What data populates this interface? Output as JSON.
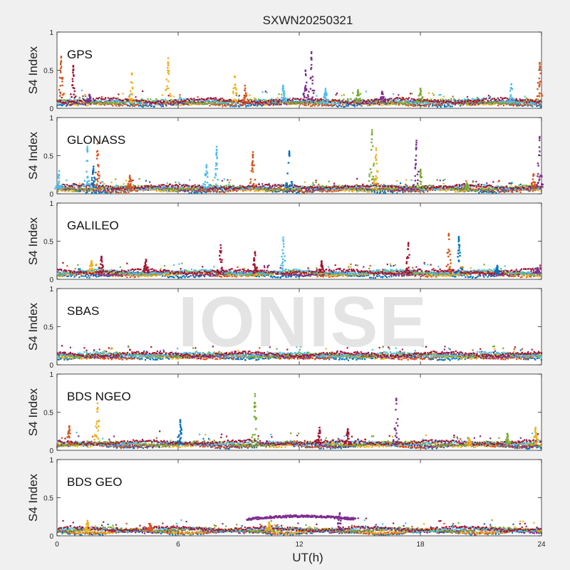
{
  "chart_data": {
    "type": "scatter",
    "title": "SXWN20250321",
    "xlabel": "UT(h)",
    "ylabel": "S4 Index",
    "xlim": [
      0,
      24
    ],
    "ylim": [
      0,
      1
    ],
    "x_ticks": [
      "0",
      "6",
      "12",
      "18",
      "24"
    ],
    "y_ticks": [
      "0",
      "0.5",
      "1"
    ],
    "watermark": "IONISE",
    "grid": false,
    "series_colors": [
      "#0072BD",
      "#D95319",
      "#EDB120",
      "#7E2F8E",
      "#77AC30",
      "#4DBEEE",
      "#A2142F"
    ],
    "panels": [
      {
        "label": "GPS",
        "baseline": 0.08,
        "spikes": [
          {
            "x": 0.2,
            "peak": 0.68,
            "color": "#D95319"
          },
          {
            "x": 0.8,
            "peak": 0.56,
            "color": "#A2142F"
          },
          {
            "x": 1.6,
            "peak": 0.18,
            "color": "#7E2F8E"
          },
          {
            "x": 3.7,
            "peak": 0.46,
            "color": "#EDB120"
          },
          {
            "x": 5.5,
            "peak": 0.66,
            "color": "#EDB120"
          },
          {
            "x": 8.8,
            "peak": 0.42,
            "color": "#EDB120"
          },
          {
            "x": 9.3,
            "peak": 0.3,
            "color": "#D95319"
          },
          {
            "x": 11.2,
            "peak": 0.3,
            "color": "#4DBEEE"
          },
          {
            "x": 12.3,
            "peak": 0.5,
            "color": "#7E2F8E"
          },
          {
            "x": 12.6,
            "peak": 0.74,
            "color": "#7E2F8E"
          },
          {
            "x": 13.3,
            "peak": 0.26,
            "color": "#4DBEEE"
          },
          {
            "x": 14.9,
            "peak": 0.24,
            "color": "#77AC30"
          },
          {
            "x": 16.1,
            "peak": 0.22,
            "color": "#7E2F8E"
          },
          {
            "x": 18.0,
            "peak": 0.26,
            "color": "#77AC30"
          },
          {
            "x": 22.5,
            "peak": 0.32,
            "color": "#4DBEEE"
          },
          {
            "x": 23.9,
            "peak": 0.6,
            "color": "#D95319"
          }
        ]
      },
      {
        "label": "GLONASS",
        "baseline": 0.07,
        "spikes": [
          {
            "x": 0.1,
            "peak": 0.3,
            "color": "#4DBEEE"
          },
          {
            "x": 1.5,
            "peak": 0.62,
            "color": "#4DBEEE"
          },
          {
            "x": 1.8,
            "peak": 0.36,
            "color": "#0072BD"
          },
          {
            "x": 2.0,
            "peak": 0.66,
            "color": "#D95319"
          },
          {
            "x": 3.6,
            "peak": 0.24,
            "color": "#D95319"
          },
          {
            "x": 7.4,
            "peak": 0.38,
            "color": "#4DBEEE"
          },
          {
            "x": 7.9,
            "peak": 0.62,
            "color": "#4DBEEE"
          },
          {
            "x": 9.7,
            "peak": 0.55,
            "color": "#D95319"
          },
          {
            "x": 11.5,
            "peak": 0.56,
            "color": "#0072BD"
          },
          {
            "x": 15.6,
            "peak": 0.84,
            "color": "#77AC30"
          },
          {
            "x": 15.8,
            "peak": 0.6,
            "color": "#EDB120"
          },
          {
            "x": 17.8,
            "peak": 0.7,
            "color": "#7E2F8E"
          },
          {
            "x": 18.0,
            "peak": 0.32,
            "color": "#77AC30"
          },
          {
            "x": 20.3,
            "peak": 0.14,
            "color": "#77AC30"
          },
          {
            "x": 23.6,
            "peak": 0.26,
            "color": "#D95319"
          },
          {
            "x": 23.9,
            "peak": 0.75,
            "color": "#7E2F8E"
          }
        ]
      },
      {
        "label": "GALILEO",
        "baseline": 0.08,
        "spikes": [
          {
            "x": 1.7,
            "peak": 0.24,
            "color": "#EDB120"
          },
          {
            "x": 2.2,
            "peak": 0.3,
            "color": "#A2142F"
          },
          {
            "x": 4.4,
            "peak": 0.26,
            "color": "#A2142F"
          },
          {
            "x": 8.1,
            "peak": 0.45,
            "color": "#A2142F"
          },
          {
            "x": 9.8,
            "peak": 0.36,
            "color": "#A2142F"
          },
          {
            "x": 11.2,
            "peak": 0.55,
            "color": "#4DBEEE"
          },
          {
            "x": 13.1,
            "peak": 0.24,
            "color": "#A2142F"
          },
          {
            "x": 17.4,
            "peak": 0.48,
            "color": "#A2142F"
          },
          {
            "x": 19.4,
            "peak": 0.6,
            "color": "#D95319"
          },
          {
            "x": 19.9,
            "peak": 0.56,
            "color": "#0072BD"
          },
          {
            "x": 21.8,
            "peak": 0.18,
            "color": "#0072BD"
          },
          {
            "x": 23.8,
            "peak": 0.15,
            "color": "#7E2F8E"
          }
        ]
      },
      {
        "label": "SBAS",
        "baseline": 0.12,
        "spikes": []
      },
      {
        "label": "BDS NGEO",
        "baseline": 0.08,
        "spikes": [
          {
            "x": 0.6,
            "peak": 0.32,
            "color": "#D95319"
          },
          {
            "x": 2.0,
            "peak": 0.62,
            "color": "#EDB120"
          },
          {
            "x": 6.1,
            "peak": 0.4,
            "color": "#0072BD"
          },
          {
            "x": 9.8,
            "peak": 0.74,
            "color": "#77AC30"
          },
          {
            "x": 13.0,
            "peak": 0.3,
            "color": "#A2142F"
          },
          {
            "x": 14.4,
            "peak": 0.28,
            "color": "#A2142F"
          },
          {
            "x": 16.8,
            "peak": 0.68,
            "color": "#7E2F8E"
          },
          {
            "x": 20.4,
            "peak": 0.16,
            "color": "#EDB120"
          },
          {
            "x": 22.3,
            "peak": 0.22,
            "color": "#77AC30"
          },
          {
            "x": 23.7,
            "peak": 0.3,
            "color": "#EDB120"
          }
        ]
      },
      {
        "label": "BDS GEO",
        "baseline": 0.07,
        "spikes": [
          {
            "x": 1.5,
            "peak": 0.2,
            "color": "#EDB120"
          },
          {
            "x": 4.6,
            "peak": 0.16,
            "color": "#D95319"
          },
          {
            "x": 10.5,
            "peak": 0.18,
            "color": "#EDB120"
          },
          {
            "x": 14.0,
            "peak": 0.3,
            "color": "#7E2F8E"
          }
        ],
        "band": {
          "x_start": 9.4,
          "x_end": 14.8,
          "level": 0.22,
          "color": "#7E2F8E"
        }
      }
    ]
  }
}
